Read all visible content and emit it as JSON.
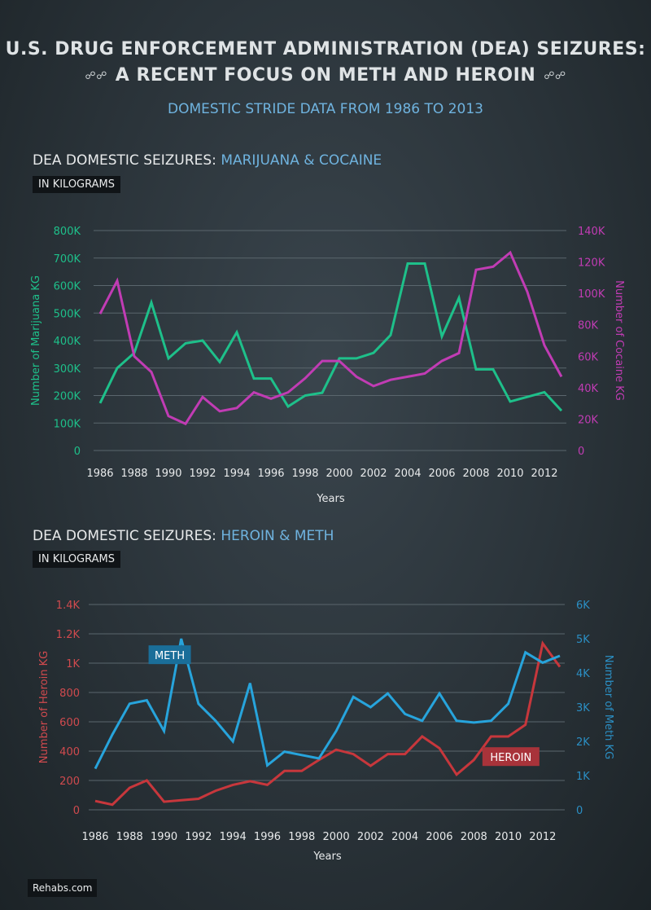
{
  "header": {
    "title_line1": "U.S. DRUG ENFORCEMENT ADMINISTRATION (DEA) SEIZURES:",
    "title_line2": "A RECENT FOCUS ON METH AND HEROIN",
    "subtitle": "DOMESTIC STRIDE DATA FROM 1986 TO 2013"
  },
  "footer": {
    "source": "Rehabs.com"
  },
  "chart_data": [
    {
      "type": "line",
      "title_prefix": "DEA DOMESTIC SEIZURES: ",
      "title_highlight": "MARIJUANA & COCAINE",
      "unit_badge": "IN KILOGRAMS",
      "xlabel": "Years",
      "ylabel_left": "Number of Marijuana KG",
      "ylabel_right": "Number of Cocaine KG",
      "ylim_left": [
        0,
        800000
      ],
      "ylim_right": [
        0,
        140000
      ],
      "yticks_left": [
        "0",
        "100K",
        "200K",
        "300K",
        "400K",
        "500K",
        "600K",
        "700K",
        "800K"
      ],
      "yticks_right": [
        "0",
        "20K",
        "40K",
        "60K",
        "80K",
        "100K",
        "120K",
        "140K"
      ],
      "xticks": [
        "1986",
        "1988",
        "1990",
        "1992",
        "1994",
        "1996",
        "1998",
        "2000",
        "2002",
        "2004",
        "2006",
        "2008",
        "2010",
        "2012"
      ],
      "x": [
        1986,
        1987,
        1988,
        1989,
        1990,
        1991,
        1992,
        1993,
        1994,
        1995,
        1996,
        1997,
        1998,
        1999,
        2000,
        2001,
        2002,
        2003,
        2004,
        2005,
        2006,
        2007,
        2008,
        2009,
        2010,
        2011,
        2012,
        2013
      ],
      "grid": true,
      "colors": {
        "left_axis": "#1ec08a",
        "right_axis": "#c13cb4"
      },
      "series": [
        {
          "axis": "left",
          "color": "#1ec08a",
          "values": [
            172000,
            300000,
            355000,
            538000,
            335000,
            390000,
            400000,
            322000,
            430000,
            262000,
            262000,
            160000,
            200000,
            210000,
            335000,
            335000,
            355000,
            420000,
            680000,
            680000,
            415000,
            555000,
            295000,
            295000,
            178000,
            195000,
            212000,
            145000
          ]
        },
        {
          "axis": "right",
          "color": "#c13cb4",
          "values": [
            87000,
            108000,
            60000,
            50000,
            22000,
            17000,
            34000,
            25000,
            27000,
            37000,
            33000,
            37000,
            46000,
            57000,
            57000,
            47000,
            41000,
            45000,
            47000,
            49000,
            57000,
            62000,
            115000,
            117000,
            126000,
            101000,
            67000,
            47000
          ]
        }
      ]
    },
    {
      "type": "line",
      "title_prefix": "DEA DOMESTIC SEIZURES: ",
      "title_highlight": "HEROIN & METH",
      "unit_badge": "IN KILOGRAMS",
      "xlabel": "Years",
      "ylabel_left": "Number of Heroin KG",
      "ylabel_right": "Number of Meth KG",
      "ylim_left": [
        0,
        1400
      ],
      "ylim_right": [
        0,
        6000
      ],
      "yticks_left": [
        "0",
        "200",
        "400",
        "600",
        "800",
        "1K",
        "1.2K",
        "1.4K"
      ],
      "yticks_right": [
        "0",
        "1K",
        "2K",
        "3K",
        "4K",
        "5K",
        "6K"
      ],
      "xticks": [
        "1986",
        "1988",
        "1990",
        "1992",
        "1994",
        "1996",
        "1998",
        "2000",
        "2002",
        "2004",
        "2006",
        "2008",
        "2010",
        "2012"
      ],
      "x": [
        1986,
        1987,
        1988,
        1989,
        1990,
        1991,
        1992,
        1993,
        1994,
        1995,
        1996,
        1997,
        1998,
        1999,
        2000,
        2001,
        2002,
        2003,
        2004,
        2005,
        2006,
        2007,
        2008,
        2009,
        2010,
        2011,
        2012,
        2013
      ],
      "grid": true,
      "colors": {
        "left_axis": "#d04a4e",
        "right_axis": "#2b8fc4"
      },
      "series": [
        {
          "axis": "left",
          "name": "HEROIN",
          "color": "#c7373c",
          "label_color": "#a8333a",
          "label_anchor": [
            2008.5,
            360
          ],
          "values": [
            60,
            35,
            150,
            200,
            55,
            65,
            75,
            130,
            170,
            195,
            170,
            265,
            265,
            340,
            410,
            380,
            300,
            380,
            380,
            500,
            420,
            240,
            340,
            500,
            500,
            580,
            1135,
            975
          ]
        },
        {
          "axis": "right",
          "name": "METH",
          "color": "#27a4dc",
          "label_color": "#1a6e99",
          "label_anchor": [
            1989.1,
            4520
          ],
          "values": [
            1200,
            2200,
            3100,
            3200,
            2300,
            5000,
            3100,
            2600,
            2000,
            3700,
            1300,
            1700,
            1600,
            1500,
            2300,
            3300,
            3000,
            3400,
            2800,
            2600,
            3400,
            2600,
            2550,
            2600,
            3100,
            4600,
            4300,
            4500
          ]
        }
      ]
    }
  ]
}
